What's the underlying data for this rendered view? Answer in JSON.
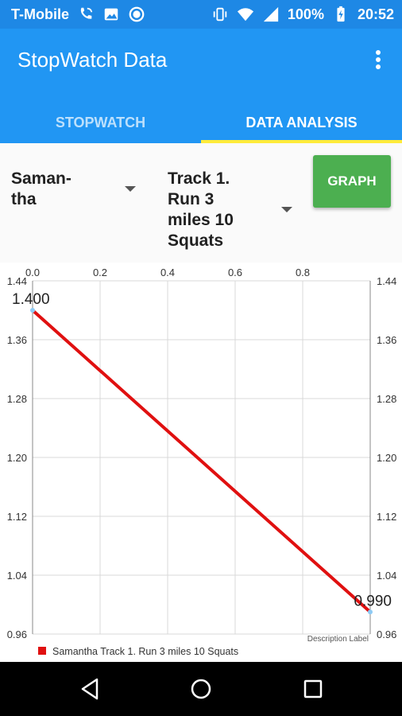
{
  "status_bar": {
    "carrier": "T-Mobile",
    "battery": "100%",
    "time": "20:52"
  },
  "app_bar": {
    "title": "StopWatch Data",
    "tabs": [
      {
        "label": "STOPWATCH",
        "active": false
      },
      {
        "label": "DATA ANALYSIS",
        "active": true
      }
    ]
  },
  "controls": {
    "person_select": "Saman-\ntha",
    "workout_select": "Track 1.\nRun 3\nmiles 10\nSquats",
    "graph_button": "GRAPH"
  },
  "chart_data": {
    "type": "line",
    "x": [
      0.0,
      1.0
    ],
    "series": [
      {
        "name": "Samantha Track 1. Run 3 miles 10 Squats",
        "values": [
          1.4,
          0.99
        ],
        "color": "#e01010"
      }
    ],
    "data_labels": [
      "1.400",
      "0.990"
    ],
    "xlim": [
      0.0,
      1.0
    ],
    "ylim": [
      0.96,
      1.44
    ],
    "x_ticks": [
      "0.0",
      "0.2",
      "0.4",
      "0.6",
      "0.8"
    ],
    "y_ticks": [
      "0.96",
      "1.04",
      "1.12",
      "1.20",
      "1.28",
      "1.36",
      "1.44"
    ],
    "description": "Description Label",
    "grid": true,
    "legend_position": "bottom-left"
  },
  "nav": {
    "back": "back-icon",
    "home": "home-icon",
    "recents": "recents-icon"
  }
}
